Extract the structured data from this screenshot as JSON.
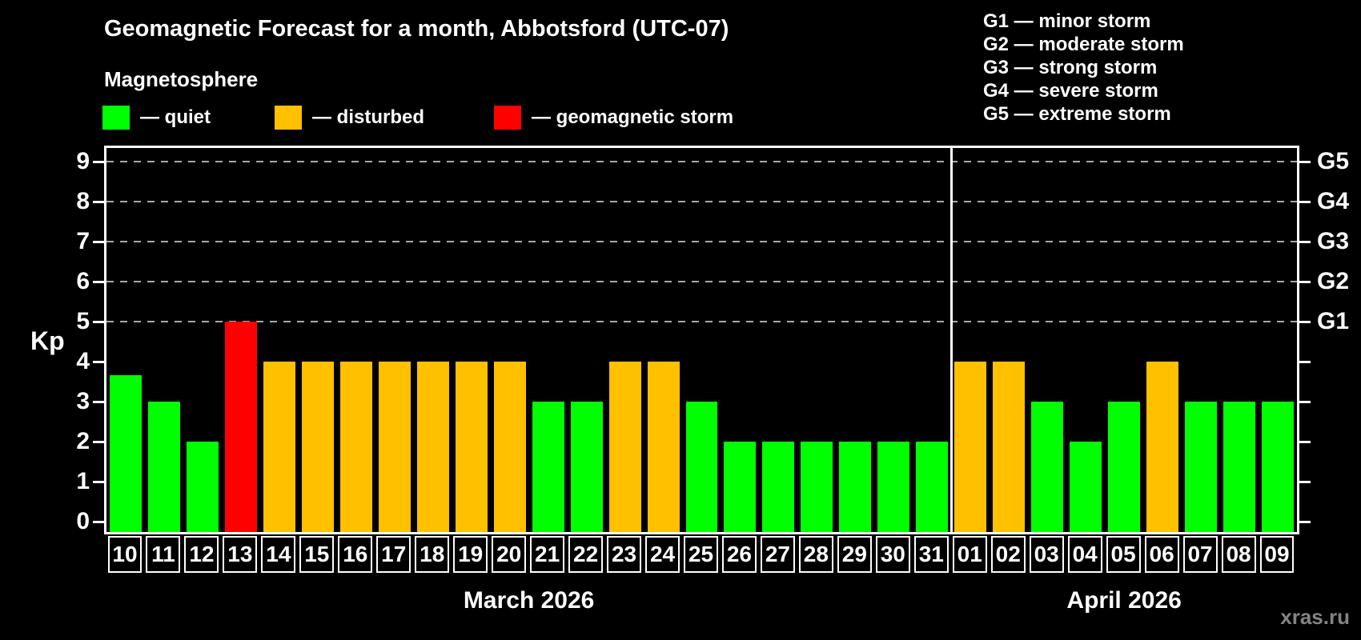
{
  "title": "Geomagnetic Forecast for a month, Abbotsford (UTC-07)",
  "subtitle": "Magnetosphere",
  "colors": {
    "quiet": "#00ff00",
    "disturbed": "#ffc000",
    "storm": "#ff0000",
    "grid": "#a8a8a8",
    "frame": "#ffffff",
    "watermark": "#848484"
  },
  "legend": {
    "items": [
      {
        "key": "quiet",
        "label": "— quiet"
      },
      {
        "key": "disturbed",
        "label": "— disturbed"
      },
      {
        "key": "storm",
        "label": "— geomagnetic storm"
      }
    ]
  },
  "g_legend": [
    "G1 — minor storm",
    "G2 — moderate storm",
    "G3 — strong storm",
    "G4 — severe storm",
    "G5 — extreme storm"
  ],
  "watermark": "xras.ru",
  "chart_data": {
    "type": "bar",
    "ylabel": "Kp",
    "ylim": [
      0,
      9
    ],
    "yticks": [
      0,
      1,
      2,
      3,
      4,
      5,
      6,
      7,
      8,
      9
    ],
    "gridline_values": [
      5,
      6,
      7,
      8,
      9
    ],
    "grid_style": "dashed horizontal lines at storm levels only",
    "right_axis": [
      {
        "value": 5,
        "label": "G1"
      },
      {
        "value": 6,
        "label": "G2"
      },
      {
        "value": 7,
        "label": "G3"
      },
      {
        "value": 8,
        "label": "G4"
      },
      {
        "value": 9,
        "label": "G5"
      }
    ],
    "months": [
      {
        "label": "March 2026",
        "days": 22
      },
      {
        "label": "April 2026",
        "days": 9
      }
    ],
    "categories": [
      "10",
      "11",
      "12",
      "13",
      "14",
      "15",
      "16",
      "17",
      "18",
      "19",
      "20",
      "21",
      "22",
      "23",
      "24",
      "25",
      "26",
      "27",
      "28",
      "29",
      "30",
      "31",
      "01",
      "02",
      "03",
      "04",
      "05",
      "06",
      "07",
      "08",
      "09"
    ],
    "values": [
      3.67,
      3,
      2,
      5,
      4,
      4,
      4,
      4,
      4,
      4,
      4,
      3,
      3,
      4,
      4,
      3,
      2,
      2,
      2,
      2,
      2,
      2,
      4,
      4,
      3,
      2,
      3,
      4,
      3,
      3,
      3
    ],
    "statuses": [
      "quiet",
      "quiet",
      "quiet",
      "storm",
      "disturbed",
      "disturbed",
      "disturbed",
      "disturbed",
      "disturbed",
      "disturbed",
      "disturbed",
      "quiet",
      "quiet",
      "disturbed",
      "disturbed",
      "quiet",
      "quiet",
      "quiet",
      "quiet",
      "quiet",
      "quiet",
      "quiet",
      "disturbed",
      "disturbed",
      "quiet",
      "quiet",
      "quiet",
      "disturbed",
      "quiet",
      "quiet",
      "quiet"
    ]
  }
}
